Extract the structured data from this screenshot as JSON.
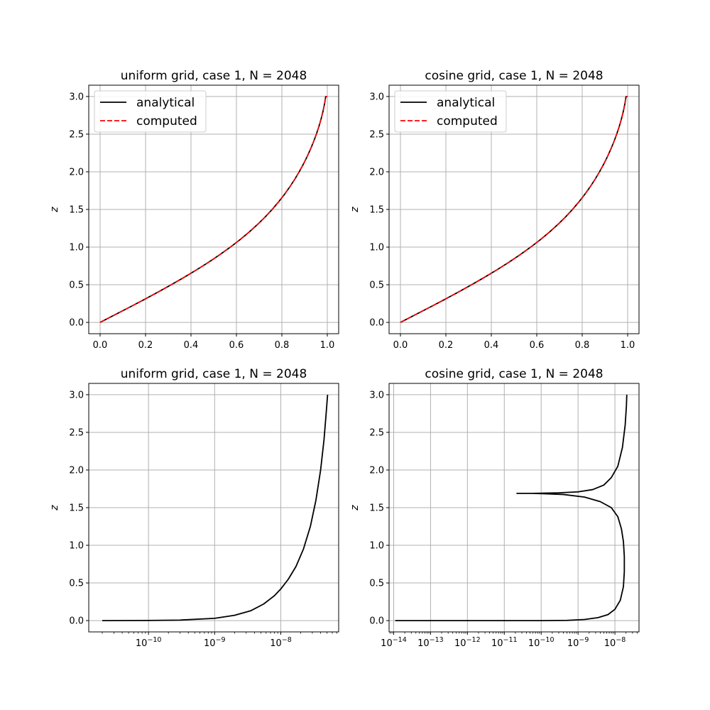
{
  "chart_data": [
    {
      "type": "line",
      "title": "uniform grid, case 1, N = 2048",
      "ylabel": "z",
      "xscale": "linear",
      "xlim": [
        -0.05,
        1.05
      ],
      "ylim": [
        -0.15,
        3.15
      ],
      "xticks": [
        0.0,
        0.2,
        0.4,
        0.6,
        0.8,
        1.0
      ],
      "xtick_labels": [
        "0.0",
        "0.2",
        "0.4",
        "0.6",
        "0.8",
        "1.0"
      ],
      "yticks": [
        0.0,
        0.5,
        1.0,
        1.5,
        2.0,
        2.5,
        3.0
      ],
      "ytick_labels": [
        "0.0",
        "0.5",
        "1.0",
        "1.5",
        "2.0",
        "2.5",
        "3.0"
      ],
      "grid": true,
      "legend": "upper left",
      "series": [
        {
          "name": "analytical",
          "color": "#000000",
          "dash": "solid",
          "x": [
            0.0,
            0.0645,
            0.1286,
            0.1916,
            0.2532,
            0.313,
            0.3706,
            0.4257,
            0.478,
            0.5272,
            0.5734,
            0.6163,
            0.6561,
            0.6927,
            0.7264,
            0.7573,
            0.7855,
            0.8113,
            0.835,
            0.8566,
            0.8763,
            0.8944,
            0.9109,
            0.9259,
            0.9396,
            0.9519,
            0.9629,
            0.9725,
            0.9808,
            0.9877,
            0.9931,
            0.997,
            0.9992,
            1.0
          ],
          "y": [
            0.0,
            0.1,
            0.2,
            0.3,
            0.4,
            0.5,
            0.6,
            0.7,
            0.8,
            0.9,
            1.0,
            1.1,
            1.2,
            1.3,
            1.4,
            1.5,
            1.6,
            1.7,
            1.8,
            1.9,
            2.0,
            2.1,
            2.2,
            2.3,
            2.4,
            2.5,
            2.6,
            2.7,
            2.8,
            2.9,
            3.0,
            3.0,
            3.0,
            3.0
          ]
        },
        {
          "name": "computed",
          "color": "#ff0000",
          "dash": "dashed",
          "x": [
            0.0,
            0.0645,
            0.1286,
            0.1916,
            0.2532,
            0.313,
            0.3706,
            0.4257,
            0.478,
            0.5272,
            0.5734,
            0.6163,
            0.6561,
            0.6927,
            0.7264,
            0.7573,
            0.7855,
            0.8113,
            0.835,
            0.8566,
            0.8763,
            0.8944,
            0.9109,
            0.9259,
            0.9396,
            0.9519,
            0.9629,
            0.9725,
            0.9808,
            0.9877,
            0.9931,
            0.997,
            0.9992,
            1.0
          ],
          "y": [
            0.0,
            0.1,
            0.2,
            0.3,
            0.4,
            0.5,
            0.6,
            0.7,
            0.8,
            0.9,
            1.0,
            1.1,
            1.2,
            1.3,
            1.4,
            1.5,
            1.6,
            1.7,
            1.8,
            1.9,
            2.0,
            2.1,
            2.2,
            2.3,
            2.4,
            2.5,
            2.6,
            2.7,
            2.8,
            2.9,
            3.0,
            3.0,
            3.0,
            3.0
          ]
        }
      ]
    },
    {
      "type": "line",
      "title": "cosine grid, case 1, N = 2048",
      "ylabel": "z",
      "xscale": "linear",
      "xlim": [
        -0.05,
        1.05
      ],
      "ylim": [
        -0.15,
        3.15
      ],
      "xticks": [
        0.0,
        0.2,
        0.4,
        0.6,
        0.8,
        1.0
      ],
      "xtick_labels": [
        "0.0",
        "0.2",
        "0.4",
        "0.6",
        "0.8",
        "1.0"
      ],
      "yticks": [
        0.0,
        0.5,
        1.0,
        1.5,
        2.0,
        2.5,
        3.0
      ],
      "ytick_labels": [
        "0.0",
        "0.5",
        "1.0",
        "1.5",
        "2.0",
        "2.5",
        "3.0"
      ],
      "grid": true,
      "legend": "upper left",
      "series": [
        {
          "name": "analytical",
          "color": "#000000",
          "dash": "solid",
          "x": [
            0.0,
            0.0645,
            0.1286,
            0.1916,
            0.2532,
            0.313,
            0.3706,
            0.4257,
            0.478,
            0.5272,
            0.5734,
            0.6163,
            0.6561,
            0.6927,
            0.7264,
            0.7573,
            0.7855,
            0.8113,
            0.835,
            0.8566,
            0.8763,
            0.8944,
            0.9109,
            0.9259,
            0.9396,
            0.9519,
            0.9629,
            0.9725,
            0.9808,
            0.9877,
            0.9931,
            0.997,
            0.9992,
            1.0
          ],
          "y": [
            0.0,
            0.1,
            0.2,
            0.3,
            0.4,
            0.5,
            0.6,
            0.7,
            0.8,
            0.9,
            1.0,
            1.1,
            1.2,
            1.3,
            1.4,
            1.5,
            1.6,
            1.7,
            1.8,
            1.9,
            2.0,
            2.1,
            2.2,
            2.3,
            2.4,
            2.5,
            2.6,
            2.7,
            2.8,
            2.9,
            3.0,
            3.0,
            3.0,
            3.0
          ]
        },
        {
          "name": "computed",
          "color": "#ff0000",
          "dash": "dashed",
          "x": [
            0.0,
            0.0645,
            0.1286,
            0.1916,
            0.2532,
            0.313,
            0.3706,
            0.4257,
            0.478,
            0.5272,
            0.5734,
            0.6163,
            0.6561,
            0.6927,
            0.7264,
            0.7573,
            0.7855,
            0.8113,
            0.835,
            0.8566,
            0.8763,
            0.8944,
            0.9109,
            0.9259,
            0.9396,
            0.9519,
            0.9629,
            0.9725,
            0.9808,
            0.9877,
            0.9931,
            0.997,
            0.9992,
            1.0
          ],
          "y": [
            0.0,
            0.1,
            0.2,
            0.3,
            0.4,
            0.5,
            0.6,
            0.7,
            0.8,
            0.9,
            1.0,
            1.1,
            1.2,
            1.3,
            1.4,
            1.5,
            1.6,
            1.7,
            1.8,
            1.9,
            2.0,
            2.1,
            2.2,
            2.3,
            2.4,
            2.5,
            2.6,
            2.7,
            2.8,
            2.9,
            3.0,
            3.0,
            3.0,
            3.0
          ]
        }
      ]
    },
    {
      "type": "line",
      "title": "uniform grid, case 1, N = 2048",
      "ylabel": "z",
      "xscale": "log",
      "xlim": [
        1.25e-11,
        7.5e-08
      ],
      "ylim": [
        -0.15,
        3.15
      ],
      "xticks": [
        1e-10,
        1e-09,
        1e-08
      ],
      "xtick_labels": [
        [
          "10",
          "−10"
        ],
        [
          "10",
          "−9"
        ],
        [
          "10",
          "−8"
        ]
      ],
      "yticks": [
        0.0,
        0.5,
        1.0,
        1.5,
        2.0,
        2.5,
        3.0
      ],
      "ytick_labels": [
        "0.0",
        "0.5",
        "1.0",
        "1.5",
        "2.0",
        "2.5",
        "3.0"
      ],
      "grid": true,
      "series": [
        {
          "color": "#000000",
          "dash": "solid",
          "x": [
            2e-11,
            1e-10,
            3e-10,
            1e-09,
            2e-09,
            3.5e-09,
            5.5e-09,
            8e-09,
            1e-08,
            1.3e-08,
            1.7e-08,
            2.2e-08,
            2.8e-08,
            3.4e-08,
            4e-08,
            4.5e-08,
            4.8e-08,
            5e-08,
            5.1e-08
          ],
          "y": [
            0.0,
            0.002,
            0.007,
            0.03,
            0.07,
            0.13,
            0.22,
            0.33,
            0.42,
            0.55,
            0.72,
            0.95,
            1.25,
            1.6,
            2.0,
            2.4,
            2.7,
            2.9,
            3.0
          ]
        }
      ]
    },
    {
      "type": "line",
      "title": "cosine grid, case 1, N = 2048",
      "ylabel": "z",
      "xscale": "log",
      "xlim": [
        7.5e-15,
        4.5e-08
      ],
      "ylim": [
        -0.15,
        3.15
      ],
      "xticks": [
        1e-14,
        1e-13,
        1e-12,
        1e-11,
        1e-10,
        1e-09,
        1e-08
      ],
      "xtick_labels": [
        [
          "10",
          "−14"
        ],
        [
          "10",
          "−13"
        ],
        [
          "10",
          "−12"
        ],
        [
          "10",
          "−11"
        ],
        [
          "10",
          "−10"
        ],
        [
          "10",
          "−9"
        ],
        [
          "10",
          "−8"
        ]
      ],
      "yticks": [
        0.0,
        0.5,
        1.0,
        1.5,
        2.0,
        2.5,
        3.0
      ],
      "ytick_labels": [
        "0.0",
        "0.5",
        "1.0",
        "1.5",
        "2.0",
        "2.5",
        "3.0"
      ],
      "grid": true,
      "series": [
        {
          "color": "#000000",
          "dash": "solid",
          "x": [
            1.1e-14,
            1e-12,
            1e-10,
            5e-10,
            1.5e-09,
            3.5e-09,
            6.5e-09,
            1e-08,
            1.4e-08,
            1.7e-08,
            1.8e-08,
            1.8e-08,
            1.7e-08,
            1.5e-08,
            1.2e-08,
            8e-09,
            4e-09,
            1.5e-09,
            4e-10,
            6e-11,
            2.2e-11,
            6e-11,
            3e-10,
            1e-09,
            2.5e-09,
            5e-09,
            8e-09,
            1.2e-08,
            1.6e-08,
            1.9e-08,
            2.05e-08,
            2.1e-08
          ],
          "y": [
            0.0,
            0.0,
            0.0,
            0.003,
            0.015,
            0.04,
            0.08,
            0.15,
            0.27,
            0.45,
            0.65,
            0.85,
            1.05,
            1.22,
            1.38,
            1.5,
            1.58,
            1.64,
            1.675,
            1.69,
            1.69,
            1.69,
            1.697,
            1.71,
            1.74,
            1.8,
            1.9,
            2.05,
            2.3,
            2.6,
            2.85,
            3.0
          ]
        }
      ]
    }
  ]
}
